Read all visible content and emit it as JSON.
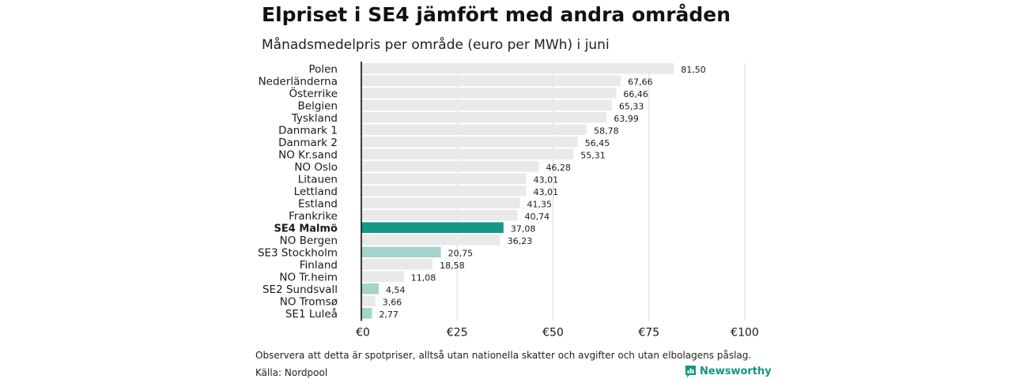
{
  "title": "Elpriset i SE4 jämfört med andra områden",
  "subtitle": "Månadsmedelpris per område (euro per MWh) i juni",
  "footnote": "Observera att detta är spotpriser, alltså utan nationella skatter och avgifter och utan elbolagens påslag.",
  "source": "Källa: Nordpool",
  "brand": {
    "name": "Newsworthy",
    "icon": "newsworthy-logo-icon"
  },
  "colors": {
    "default_bar": "#e9e9e9",
    "highlight_bar": "#159786",
    "swedish_bar": "#a5d3cd",
    "gridline": "#d9d9d9",
    "axis": "#000000"
  },
  "chart_data": {
    "type": "bar",
    "orientation": "horizontal",
    "categories": [
      "Polen",
      "Nederländerna",
      "Österrike",
      "Belgien",
      "Tyskland",
      "Danmark  1",
      "Danmark  2",
      "NO Kr.sand",
      "NO Oslo",
      "Litauen",
      "Lettland",
      "Estland",
      "Frankrike",
      "SE4 Malmö",
      "NO Bergen",
      "SE3  Stockholm",
      "Finland",
      "NO Tr.heim",
      "SE2  Sundsvall",
      "NO Tromsø",
      "SE1  Luleå"
    ],
    "values": [
      81.5,
      67.66,
      66.46,
      65.33,
      63.99,
      58.78,
      56.45,
      55.31,
      46.28,
      43.01,
      43.01,
      41.35,
      40.74,
      37.08,
      36.23,
      20.75,
      18.58,
      11.08,
      4.54,
      3.66,
      2.77
    ],
    "value_labels": [
      "81,50",
      "67,66",
      "66,46",
      "65,33",
      "63,99",
      "58,78",
      "56,45",
      "55,31",
      "46,28",
      "43,01",
      "43,01",
      "41,35",
      "40,74",
      "37,08",
      "36,23",
      "20,75",
      "18,58",
      "11,08",
      "4,54",
      "3,66",
      "2,77"
    ],
    "bar_style": [
      "default",
      "default",
      "default",
      "default",
      "default",
      "default",
      "default",
      "default",
      "default",
      "default",
      "default",
      "default",
      "default",
      "highlight",
      "default",
      "swedish",
      "default",
      "default",
      "swedish",
      "default",
      "swedish"
    ],
    "bold_categories": [
      "SE4 Malmö"
    ],
    "xlim": [
      0,
      100
    ],
    "x_ticks": [
      0,
      25,
      50,
      75,
      100
    ],
    "x_tick_labels": [
      "€0",
      "€25",
      "€50",
      "€75",
      "€100"
    ],
    "grid": true
  }
}
